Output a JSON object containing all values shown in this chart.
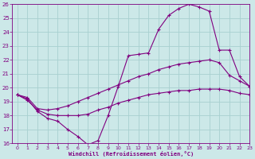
{
  "xlabel": "Windchill (Refroidissement éolien,°C)",
  "bg_color": "#cce8e8",
  "line_color": "#800080",
  "grid_color": "#a8d0d0",
  "xlim": [
    -0.5,
    23
  ],
  "ylim": [
    16,
    26
  ],
  "xticks": [
    0,
    1,
    2,
    3,
    4,
    5,
    6,
    7,
    8,
    9,
    10,
    11,
    12,
    13,
    14,
    15,
    16,
    17,
    18,
    19,
    20,
    21,
    22,
    23
  ],
  "yticks": [
    16,
    17,
    18,
    19,
    20,
    21,
    22,
    23,
    24,
    25,
    26
  ],
  "line1_x": [
    0,
    1,
    2,
    3,
    4,
    5,
    6,
    7,
    8,
    9,
    10,
    11,
    12,
    13,
    14,
    15,
    16,
    17,
    18,
    19,
    20,
    21,
    22,
    23
  ],
  "line1_y": [
    19.5,
    19.2,
    18.3,
    17.8,
    17.6,
    17.0,
    16.5,
    15.9,
    16.2,
    18.0,
    20.1,
    22.3,
    22.4,
    22.5,
    24.2,
    25.2,
    25.7,
    26.0,
    25.8,
    25.5,
    22.7,
    22.7,
    20.8,
    20.1
  ],
  "line2_x": [
    0,
    1,
    2,
    3,
    4,
    5,
    6,
    7,
    8,
    9,
    10,
    11,
    12,
    13,
    14,
    15,
    16,
    17,
    18,
    19,
    20,
    21,
    22,
    23
  ],
  "line2_y": [
    19.5,
    19.3,
    18.5,
    18.4,
    18.5,
    18.7,
    19.0,
    19.3,
    19.6,
    19.9,
    20.2,
    20.5,
    20.8,
    21.0,
    21.3,
    21.5,
    21.7,
    21.8,
    21.9,
    22.0,
    21.8,
    20.9,
    20.5,
    20.1
  ],
  "line3_x": [
    0,
    1,
    2,
    3,
    4,
    5,
    6,
    7,
    8,
    9,
    10,
    11,
    12,
    13,
    14,
    15,
    16,
    17,
    18,
    19,
    20,
    21,
    22,
    23
  ],
  "line3_y": [
    19.5,
    19.1,
    18.4,
    18.1,
    18.0,
    18.0,
    18.0,
    18.1,
    18.4,
    18.6,
    18.9,
    19.1,
    19.3,
    19.5,
    19.6,
    19.7,
    19.8,
    19.8,
    19.9,
    19.9,
    19.9,
    19.8,
    19.6,
    19.5
  ]
}
